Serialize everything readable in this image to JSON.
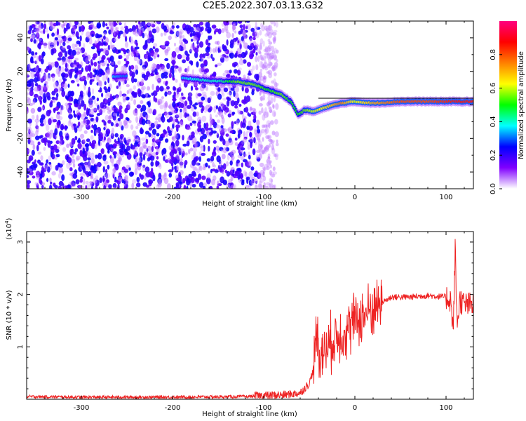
{
  "title": "C2E5.2022.307.03.13.G32",
  "chart_data": [
    {
      "type": "heatmap",
      "xlabel": "Height of straight line (km)",
      "ylabel": "Frequency (Hz)",
      "xlim": [
        -360,
        130
      ],
      "ylim": [
        -50,
        50
      ],
      "xticks": [
        -300,
        -200,
        -100,
        0,
        100
      ],
      "yticks": [
        -40,
        -20,
        0,
        20,
        40
      ],
      "colorbar": {
        "label": "Normalized spectral amplitude",
        "range": [
          0,
          1
        ],
        "ticks": [
          0.0,
          0.2,
          0.4,
          0.6,
          0.8
        ],
        "tick_labels": [
          "0.0",
          "0.2",
          "0.4",
          "0.6",
          "0.8"
        ],
        "colors": [
          "#ffffff",
          "#8000ff",
          "#0000ff",
          "#00ffff",
          "#00ff00",
          "#ffff00",
          "#ff8000",
          "#ff0000",
          "#ff0080"
        ]
      },
      "signal_track": {
        "x": [
          -265,
          -255,
          -190,
          -170,
          -150,
          -130,
          -110,
          -95,
          -80,
          -70,
          -62,
          -55,
          -45,
          -30,
          -15,
          0,
          20,
          50,
          80,
          110,
          130
        ],
        "y": [
          17,
          17,
          16,
          15,
          14,
          14,
          12,
          9,
          6,
          2,
          -6,
          -3,
          -4,
          -1,
          1,
          2,
          1,
          2,
          2,
          2,
          2
        ],
        "amplitude": [
          0.35,
          0.3,
          0.35,
          0.4,
          0.4,
          0.55,
          0.55,
          0.5,
          0.55,
          0.5,
          0.5,
          0.55,
          0.6,
          0.65,
          0.75,
          0.6,
          0.7,
          0.8,
          0.8,
          0.85,
          0.85
        ]
      }
    },
    {
      "type": "line",
      "xlabel": "Height of straight line (km)",
      "ylabel": "SNR (10 * v/v)",
      "y_multiplier_label": "(x10",
      "y_multiplier_exp": "4",
      "y_multiplier_close": ")",
      "xlim": [
        -360,
        130
      ],
      "ylim": [
        0,
        3.2
      ],
      "xticks": [
        -300,
        -200,
        -100,
        0,
        100
      ],
      "yticks": [
        1,
        2,
        3
      ],
      "series": [
        {
          "color": "#ee2222",
          "x": [
            -360,
            -300,
            -200,
            -120,
            -100,
            -80,
            -60,
            -50,
            -45,
            -42,
            -38,
            -30,
            -20,
            -10,
            0,
            10,
            20,
            30,
            40,
            60,
            80,
            100,
            105,
            108,
            110,
            112,
            115,
            120,
            130
          ],
          "y": [
            0.05,
            0.04,
            0.04,
            0.05,
            0.07,
            0.08,
            0.12,
            0.3,
            0.6,
            1.5,
            0.8,
            1.0,
            1.2,
            1.3,
            1.5,
            1.6,
            1.75,
            1.85,
            1.95,
            1.95,
            1.98,
            1.95,
            1.9,
            1.3,
            2.9,
            1.4,
            1.9,
            1.8,
            1.8
          ]
        }
      ]
    }
  ]
}
